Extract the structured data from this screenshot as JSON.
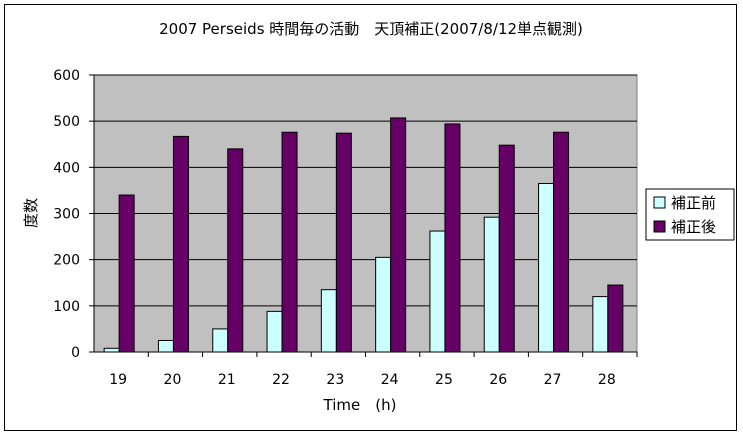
{
  "chart_data": {
    "type": "bar",
    "title": "2007 Perseids 時間毎の活動　天頂補正(2007/8/12単点観測)",
    "xlabel": "Time　(h)",
    "ylabel": "度数",
    "ylim": [
      0,
      600
    ],
    "yticks": [
      0,
      100,
      200,
      300,
      400,
      500,
      600
    ],
    "grid": true,
    "legend_position": "right",
    "plot_background": "#c0c0c0",
    "categories": [
      "19",
      "20",
      "21",
      "22",
      "23",
      "24",
      "25",
      "26",
      "27",
      "28"
    ],
    "series": [
      {
        "name": "補正前",
        "color": "#ccffff",
        "values": [
          8,
          25,
          50,
          88,
          135,
          205,
          262,
          292,
          365,
          120
        ]
      },
      {
        "name": "補正後",
        "color": "#660066",
        "values": [
          340,
          467,
          440,
          476,
          474,
          507,
          494,
          448,
          476,
          145
        ]
      }
    ]
  }
}
